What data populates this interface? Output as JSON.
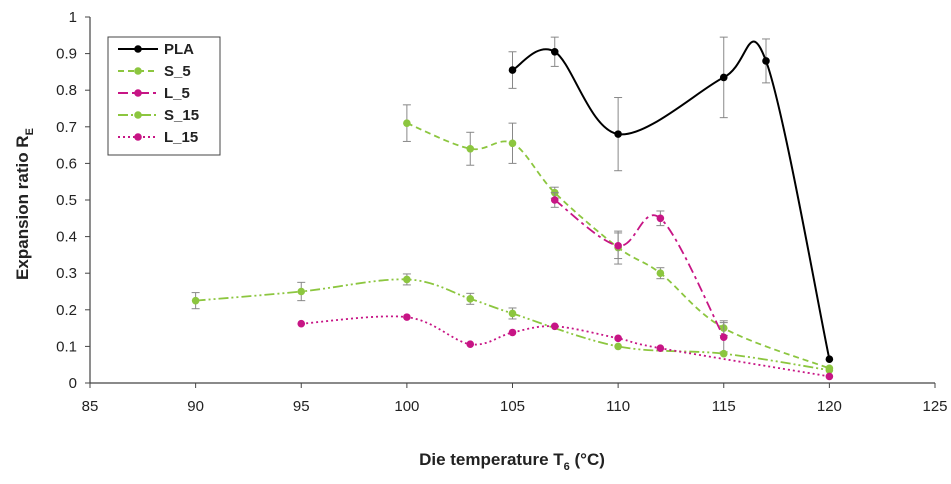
{
  "chart_data": {
    "type": "line",
    "xlabel": "Die temperature T",
    "xlabel_subscript": "6",
    "xlabel_unit": " (°C)",
    "ylabel": "Expansion ratio R",
    "ylabel_subscript": "E",
    "xlim": [
      85,
      125
    ],
    "ylim": [
      0,
      1
    ],
    "xticks": [
      85,
      90,
      95,
      100,
      105,
      110,
      115,
      120,
      125
    ],
    "yticks": [
      0,
      0.1,
      0.2,
      0.3,
      0.4,
      0.5,
      0.6,
      0.7,
      0.8,
      0.9,
      1
    ],
    "ytick_labels": [
      "0",
      "0.1",
      "0.2",
      "0.3",
      "0.4",
      "0.5",
      "0.6",
      "0.7",
      "0.8",
      "0.9",
      "1"
    ],
    "grid": false,
    "legend_position": "top-left",
    "series": [
      {
        "name": "PLA",
        "color": "#000000",
        "dash": "solid",
        "x": [
          105,
          107,
          110,
          115,
          117,
          120
        ],
        "y": [
          0.855,
          0.905,
          0.68,
          0.835,
          0.88,
          0.065
        ],
        "err": [
          0.05,
          0.04,
          0.1,
          0.11,
          0.06,
          0
        ]
      },
      {
        "name": "S_5",
        "color": "#8cc63f",
        "dash": "dashed",
        "x": [
          100,
          103,
          105,
          107,
          110,
          112,
          115,
          120
        ],
        "y": [
          0.71,
          0.64,
          0.655,
          0.52,
          0.37,
          0.3,
          0.15,
          0.04
        ],
        "err": [
          0.05,
          0.045,
          0.055,
          0.015,
          0.045,
          0.015,
          0.02,
          0
        ]
      },
      {
        "name": "L_5",
        "color": "#c71585",
        "dash": "dashdot",
        "x": [
          107,
          110,
          112,
          115
        ],
        "y": [
          0.5,
          0.375,
          0.45,
          0.125
        ],
        "err": [
          0.02,
          0.035,
          0.02,
          0.04
        ]
      },
      {
        "name": "S_15",
        "color": "#8cc63f",
        "dash": "dashdotdot",
        "x": [
          90,
          95,
          100,
          103,
          105,
          110,
          115,
          120
        ],
        "y": [
          0.225,
          0.25,
          0.283,
          0.23,
          0.19,
          0.1,
          0.08,
          0.035
        ],
        "err": [
          0.022,
          0.025,
          0.015,
          0.015,
          0.015,
          0,
          0,
          0
        ]
      },
      {
        "name": "L_15",
        "color": "#c71585",
        "dash": "dotted",
        "x": [
          95,
          100,
          103,
          105,
          107,
          110,
          112,
          120
        ],
        "y": [
          0.162,
          0.18,
          0.106,
          0.138,
          0.155,
          0.122,
          0.095,
          0.018
        ],
        "err": [
          0,
          0,
          0,
          0,
          0,
          0,
          0,
          0
        ]
      }
    ]
  }
}
